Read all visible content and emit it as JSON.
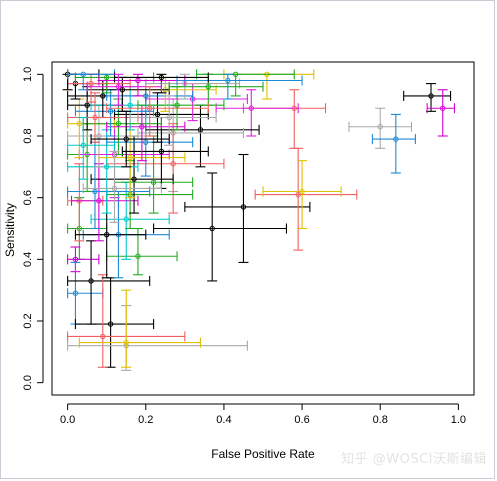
{
  "chart_data": {
    "type": "scatter",
    "title": "",
    "xlabel": "False Positive Rate",
    "ylabel": "Sensitivity",
    "xlim": [
      -0.04,
      1.04
    ],
    "ylim": [
      -0.04,
      1.04
    ],
    "xticks": [
      "0.0",
      "0.2",
      "0.4",
      "0.6",
      "0.8",
      "1.0"
    ],
    "yticks": [
      "0.0",
      "0.2",
      "0.4",
      "0.6",
      "0.8",
      "1.0"
    ],
    "grid": false,
    "legend": "none",
    "points": [
      {
        "x": 0.93,
        "y": 0.93,
        "xerr": [
          0.86,
          0.98
        ],
        "yerr": [
          0.88,
          0.97
        ],
        "color": "#000000"
      },
      {
        "x": 0.96,
        "y": 0.89,
        "xerr": [
          0.92,
          0.99
        ],
        "yerr": [
          0.8,
          0.95
        ],
        "color": "#d600d6"
      },
      {
        "x": 0.8,
        "y": 0.83,
        "xerr": [
          0.72,
          0.88
        ],
        "yerr": [
          0.76,
          0.89
        ],
        "color": "#aaaaaa"
      },
      {
        "x": 0.84,
        "y": 0.79,
        "xerr": [
          0.78,
          0.89
        ],
        "yerr": [
          0.68,
          0.87
        ],
        "color": "#1c8ad6"
      },
      {
        "x": 0.37,
        "y": 0.5,
        "xerr": [
          0.22,
          0.56
        ],
        "yerr": [
          0.33,
          0.68
        ],
        "color": "#000000"
      },
      {
        "x": 0.45,
        "y": 0.57,
        "xerr": [
          0.3,
          0.62
        ],
        "yerr": [
          0.39,
          0.74
        ],
        "color": "#000000"
      },
      {
        "x": 0.59,
        "y": 0.61,
        "xerr": [
          0.48,
          0.74
        ],
        "yerr": [
          0.43,
          0.76
        ],
        "color": "#f06060"
      },
      {
        "x": 0.6,
        "y": 0.62,
        "xerr": [
          0.5,
          0.7
        ],
        "yerr": [
          0.5,
          0.72
        ],
        "color": "#e0c000"
      },
      {
        "x": 0.58,
        "y": 0.89,
        "xerr": [
          0.45,
          0.66
        ],
        "yerr": [
          0.76,
          0.95
        ],
        "color": "#f06060"
      },
      {
        "x": 0.47,
        "y": 0.89,
        "xerr": [
          0.38,
          0.59
        ],
        "yerr": [
          0.8,
          0.95
        ],
        "color": "#e020e0"
      },
      {
        "x": 0.51,
        "y": 1.0,
        "xerr": [
          0.4,
          0.63
        ],
        "yerr": [
          0.92,
          1.0
        ],
        "color": "#e0c000"
      },
      {
        "x": 0.43,
        "y": 1.0,
        "xerr": [
          0.33,
          0.58
        ],
        "yerr": [
          0.93,
          1.0
        ],
        "color": "#22aa22"
      },
      {
        "x": 0.34,
        "y": 0.82,
        "xerr": [
          0.2,
          0.49
        ],
        "yerr": [
          0.7,
          0.9
        ],
        "color": "#000000"
      },
      {
        "x": 0.27,
        "y": 0.81,
        "xerr": [
          0.18,
          0.45
        ],
        "yerr": [
          0.62,
          0.92
        ],
        "color": "#aaaaaa"
      },
      {
        "x": 0.27,
        "y": 0.71,
        "xerr": [
          0.1,
          0.4
        ],
        "yerr": [
          0.55,
          0.84
        ],
        "color": "#f06060"
      },
      {
        "x": 0.03,
        "y": 0.5,
        "xerr": [
          0.0,
          0.1
        ],
        "yerr": [
          0.4,
          0.6
        ],
        "color": "#22aa22"
      },
      {
        "x": 0.03,
        "y": 0.59,
        "xerr": [
          0.0,
          0.09
        ],
        "yerr": [
          0.46,
          0.71
        ],
        "color": "#f06060"
      },
      {
        "x": 0.02,
        "y": 0.4,
        "xerr": [
          0.0,
          0.08
        ],
        "yerr": [
          0.36,
          0.44
        ],
        "color": "#d600d6"
      },
      {
        "x": 0.02,
        "y": 0.29,
        "xerr": [
          0.0,
          0.09
        ],
        "yerr": [
          0.19,
          0.39
        ],
        "color": "#1c8ad6"
      },
      {
        "x": 0.06,
        "y": 0.33,
        "xerr": [
          0.0,
          0.21
        ],
        "yerr": [
          0.19,
          0.46
        ],
        "color": "#000000"
      },
      {
        "x": 0.11,
        "y": 0.19,
        "xerr": [
          0.02,
          0.22
        ],
        "yerr": [
          0.05,
          0.34
        ],
        "color": "#000000"
      },
      {
        "x": 0.09,
        "y": 0.15,
        "xerr": [
          0.0,
          0.3
        ],
        "yerr": [
          0.05,
          0.35
        ],
        "color": "#f06060"
      },
      {
        "x": 0.15,
        "y": 0.12,
        "xerr": [
          0.0,
          0.46
        ],
        "yerr": [
          0.04,
          0.25
        ],
        "color": "#aaaaaa"
      },
      {
        "x": 0.15,
        "y": 0.13,
        "xerr": [
          0.03,
          0.34
        ],
        "yerr": [
          0.05,
          0.3
        ],
        "color": "#e0c000"
      },
      {
        "x": 0.13,
        "y": 0.48,
        "xerr": [
          0.04,
          0.26
        ],
        "yerr": [
          0.34,
          0.62
        ],
        "color": "#1c8ad6"
      },
      {
        "x": 0.18,
        "y": 0.41,
        "xerr": [
          0.1,
          0.28
        ],
        "yerr": [
          0.35,
          0.5
        ],
        "color": "#22aa22"
      },
      {
        "x": 0.15,
        "y": 0.53,
        "xerr": [
          0.06,
          0.26
        ],
        "yerr": [
          0.4,
          0.65
        ],
        "color": "#00c8c8"
      },
      {
        "x": 0.1,
        "y": 0.48,
        "xerr": [
          0.02,
          0.2
        ],
        "yerr": [
          0.34,
          0.62
        ],
        "color": "#000000"
      },
      {
        "x": 0.08,
        "y": 0.59,
        "xerr": [
          0.01,
          0.18
        ],
        "yerr": [
          0.46,
          0.71
        ],
        "color": "#d600d6"
      },
      {
        "x": 0.16,
        "y": 0.61,
        "xerr": [
          0.1,
          0.32
        ],
        "yerr": [
          0.5,
          0.72
        ],
        "color": "#22aa22"
      },
      {
        "x": 0.17,
        "y": 0.66,
        "xerr": [
          0.06,
          0.27
        ],
        "yerr": [
          0.55,
          0.8
        ],
        "color": "#000000"
      },
      {
        "x": 0.22,
        "y": 0.65,
        "xerr": [
          0.12,
          0.32
        ],
        "yerr": [
          0.55,
          0.8
        ],
        "color": "#22aa22"
      },
      {
        "x": 0.07,
        "y": 0.62,
        "xerr": [
          0.0,
          0.21
        ],
        "yerr": [
          0.5,
          0.78
        ],
        "color": "#1c8ad6"
      },
      {
        "x": 0.1,
        "y": 0.7,
        "xerr": [
          0.0,
          0.18
        ],
        "yerr": [
          0.55,
          0.82
        ],
        "color": "#00c8c8"
      },
      {
        "x": 0.05,
        "y": 0.74,
        "xerr": [
          0.0,
          0.15
        ],
        "yerr": [
          0.62,
          0.84
        ],
        "color": "#22aa22"
      },
      {
        "x": 0.12,
        "y": 0.74,
        "xerr": [
          0.03,
          0.26
        ],
        "yerr": [
          0.6,
          0.86
        ],
        "color": "#e020e0"
      },
      {
        "x": 0.16,
        "y": 0.73,
        "xerr": [
          0.08,
          0.3
        ],
        "yerr": [
          0.6,
          0.84
        ],
        "color": "#e0c000"
      },
      {
        "x": 0.2,
        "y": 0.78,
        "xerr": [
          0.1,
          0.32
        ],
        "yerr": [
          0.67,
          0.88
        ],
        "color": "#1c8ad6"
      },
      {
        "x": 0.24,
        "y": 0.75,
        "xerr": [
          0.14,
          0.36
        ],
        "yerr": [
          0.63,
          0.86
        ],
        "color": "#000000"
      },
      {
        "x": 0.08,
        "y": 0.8,
        "xerr": [
          0.0,
          0.2
        ],
        "yerr": [
          0.7,
          0.9
        ],
        "color": "#aaaaaa"
      },
      {
        "x": 0.03,
        "y": 0.84,
        "xerr": [
          0.0,
          0.12
        ],
        "yerr": [
          0.73,
          0.92
        ],
        "color": "#e0c000"
      },
      {
        "x": 0.13,
        "y": 0.84,
        "xerr": [
          0.04,
          0.24
        ],
        "yerr": [
          0.74,
          0.92
        ],
        "color": "#22aa22"
      },
      {
        "x": 0.19,
        "y": 0.83,
        "xerr": [
          0.1,
          0.3
        ],
        "yerr": [
          0.72,
          0.9
        ],
        "color": "#d600d6"
      },
      {
        "x": 0.23,
        "y": 0.87,
        "xerr": [
          0.12,
          0.36
        ],
        "yerr": [
          0.78,
          0.94
        ],
        "color": "#000000"
      },
      {
        "x": 0.11,
        "y": 0.88,
        "xerr": [
          0.02,
          0.22
        ],
        "yerr": [
          0.8,
          0.95
        ],
        "color": "#1c8ad6"
      },
      {
        "x": 0.05,
        "y": 0.9,
        "xerr": [
          0.0,
          0.14
        ],
        "yerr": [
          0.82,
          0.96
        ],
        "color": "#000000"
      },
      {
        "x": 0.16,
        "y": 0.9,
        "xerr": [
          0.06,
          0.28
        ],
        "yerr": [
          0.82,
          0.96
        ],
        "color": "#00c8c8"
      },
      {
        "x": 0.28,
        "y": 0.9,
        "xerr": [
          0.18,
          0.4
        ],
        "yerr": [
          0.82,
          0.96
        ],
        "color": "#22aa22"
      },
      {
        "x": 0.32,
        "y": 0.92,
        "xerr": [
          0.2,
          0.46
        ],
        "yerr": [
          0.85,
          0.97
        ],
        "color": "#e020e0"
      },
      {
        "x": 0.09,
        "y": 0.93,
        "xerr": [
          0.0,
          0.2
        ],
        "yerr": [
          0.86,
          0.98
        ],
        "color": "#000000"
      },
      {
        "x": 0.2,
        "y": 0.93,
        "xerr": [
          0.1,
          0.32
        ],
        "yerr": [
          0.86,
          0.98
        ],
        "color": "#1c8ad6"
      },
      {
        "x": 0.25,
        "y": 0.95,
        "xerr": [
          0.14,
          0.38
        ],
        "yerr": [
          0.88,
          0.99
        ],
        "color": "#e0c000"
      },
      {
        "x": 0.14,
        "y": 0.95,
        "xerr": [
          0.05,
          0.26
        ],
        "yerr": [
          0.88,
          0.99
        ],
        "color": "#000000"
      },
      {
        "x": 0.02,
        "y": 0.97,
        "xerr": [
          0.0,
          0.1
        ],
        "yerr": [
          0.92,
          1.0
        ],
        "color": "#000000"
      },
      {
        "x": 0.06,
        "y": 0.97,
        "xerr": [
          0.0,
          0.16
        ],
        "yerr": [
          0.91,
          1.0
        ],
        "color": "#f06060"
      },
      {
        "x": 0.3,
        "y": 0.97,
        "xerr": [
          0.2,
          0.44
        ],
        "yerr": [
          0.92,
          1.0
        ],
        "color": "#aaaaaa"
      },
      {
        "x": 0.36,
        "y": 0.96,
        "xerr": [
          0.26,
          0.5
        ],
        "yerr": [
          0.9,
          1.0
        ],
        "color": "#22aa22"
      },
      {
        "x": 0.0,
        "y": 1.0,
        "xerr": [
          0.0,
          0.08
        ],
        "yerr": [
          0.95,
          1.0
        ],
        "color": "#000000"
      },
      {
        "x": 0.1,
        "y": 0.99,
        "xerr": [
          0.02,
          0.22
        ],
        "yerr": [
          0.94,
          1.0
        ],
        "color": "#22aa22"
      },
      {
        "x": 0.04,
        "y": 1.0,
        "xerr": [
          0.0,
          0.12
        ],
        "yerr": [
          0.95,
          1.0
        ],
        "color": "#1c8ad6"
      },
      {
        "x": 0.18,
        "y": 0.98,
        "xerr": [
          0.08,
          0.3
        ],
        "yerr": [
          0.93,
          1.0
        ],
        "color": "#d600d6"
      },
      {
        "x": 0.41,
        "y": 0.98,
        "xerr": [
          0.28,
          0.6
        ],
        "yerr": [
          0.92,
          1.0
        ],
        "color": "#1c8ad6"
      },
      {
        "x": 0.24,
        "y": 0.99,
        "xerr": [
          0.12,
          0.36
        ],
        "yerr": [
          0.94,
          1.0
        ],
        "color": "#000000"
      },
      {
        "x": 0.13,
        "y": 0.96,
        "xerr": [
          0.05,
          0.24
        ],
        "yerr": [
          0.9,
          1.0
        ],
        "color": "#e020e0"
      },
      {
        "x": 0.07,
        "y": 0.86,
        "xerr": [
          0.0,
          0.18
        ],
        "yerr": [
          0.78,
          0.94
        ],
        "color": "#f06060"
      },
      {
        "x": 0.26,
        "y": 0.86,
        "xerr": [
          0.16,
          0.38
        ],
        "yerr": [
          0.77,
          0.93
        ],
        "color": "#aaaaaa"
      },
      {
        "x": 0.21,
        "y": 0.89,
        "xerr": [
          0.1,
          0.36
        ],
        "yerr": [
          0.8,
          0.96
        ],
        "color": "#f06060"
      },
      {
        "x": 0.04,
        "y": 0.77,
        "xerr": [
          0.0,
          0.12
        ],
        "yerr": [
          0.66,
          0.86
        ],
        "color": "#00c8c8"
      },
      {
        "x": 0.15,
        "y": 0.79,
        "xerr": [
          0.06,
          0.26
        ],
        "yerr": [
          0.7,
          0.88
        ],
        "color": "#000000"
      },
      {
        "x": 0.12,
        "y": 0.63,
        "xerr": [
          0.04,
          0.24
        ],
        "yerr": [
          0.52,
          0.75
        ],
        "color": "#aaaaaa"
      }
    ]
  },
  "watermark": "知乎 @WOSCI沃斯编辑"
}
